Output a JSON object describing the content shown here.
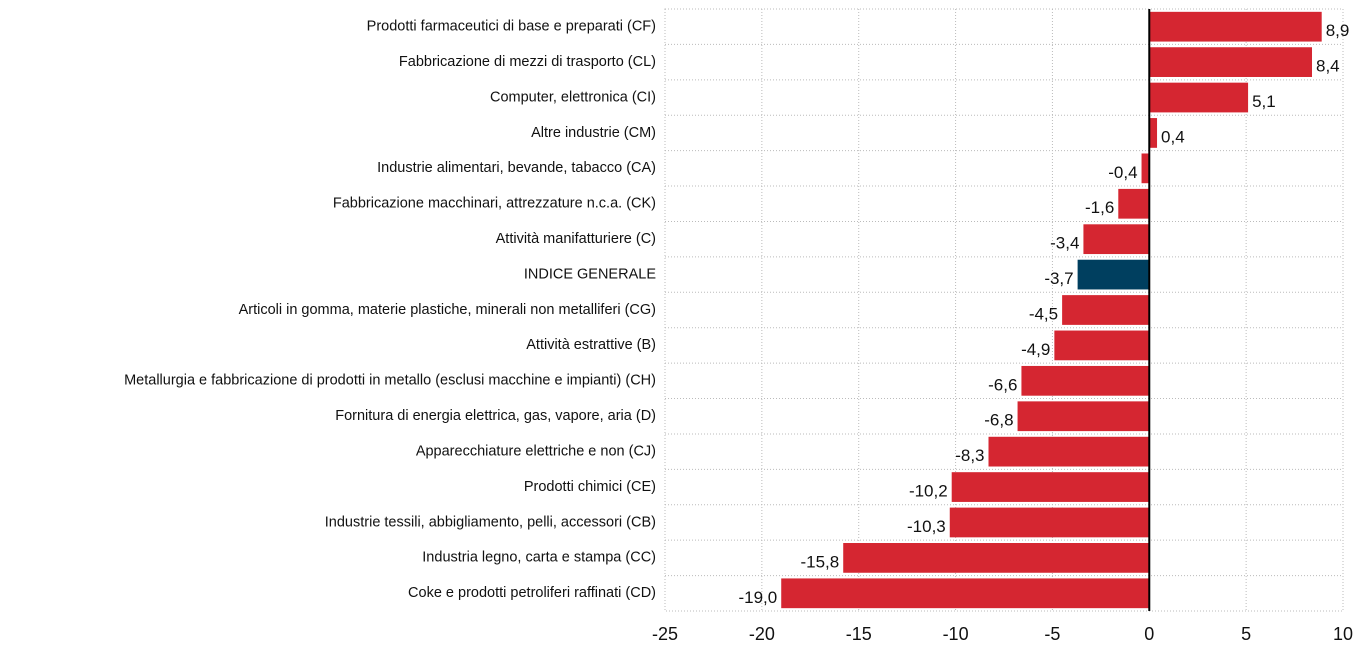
{
  "chart_data": {
    "type": "barh",
    "categories": [
      "Prodotti farmaceutici di base e preparati (CF)",
      "Fabbricazione di mezzi di trasporto (CL)",
      "Computer, elettronica (CI)",
      "Altre industrie (CM)",
      "Industrie alimentari, bevande, tabacco (CA)",
      "Fabbricazione macchinari, attrezzature n.c.a. (CK)",
      "Attività manifatturiere (C)",
      "INDICE GENERALE",
      "Articoli in gomma, materie plastiche, minerali non metalliferi (CG)",
      "Attività estrattive (B)",
      "Metallurgia e fabbricazione di prodotti in metallo (esclusi macchine e impianti) (CH)",
      "Fornitura di energia elettrica, gas, vapore, aria (D)",
      "Apparecchiature elettriche e non (CJ)",
      "Prodotti chimici (CE)",
      "Industrie tessili, abbigliamento, pelli, accessori (CB)",
      "Industria legno, carta e stampa (CC)",
      "Coke e prodotti petroliferi raffinati (CD)"
    ],
    "values": [
      8.9,
      8.4,
      5.1,
      0.4,
      -0.4,
      -1.6,
      -3.4,
      -3.7,
      -4.5,
      -4.9,
      -6.6,
      -6.8,
      -8.3,
      -10.2,
      -10.3,
      -15.8,
      -19.0
    ],
    "value_labels": [
      "8,9",
      "8,4",
      "5,1",
      "0,4",
      "-0,4",
      "-1,6",
      "-3,4",
      "-3,7",
      "-4,5",
      "-4,9",
      "-6,6",
      "-6,8",
      "-8,3",
      "-10,2",
      "-10,3",
      "-15,8",
      "-19,0"
    ],
    "colors": [
      "#d52631",
      "#d52631",
      "#d52631",
      "#d52631",
      "#d52631",
      "#d52631",
      "#d52631",
      "#003f5f",
      "#d52631",
      "#d52631",
      "#d52631",
      "#d52631",
      "#d52631",
      "#d52631",
      "#d52631",
      "#d52631",
      "#d52631"
    ],
    "xlim": [
      -25,
      10
    ],
    "xticks": [
      -25,
      -20,
      -15,
      -10,
      -5,
      0,
      5,
      10
    ],
    "grid": true
  }
}
